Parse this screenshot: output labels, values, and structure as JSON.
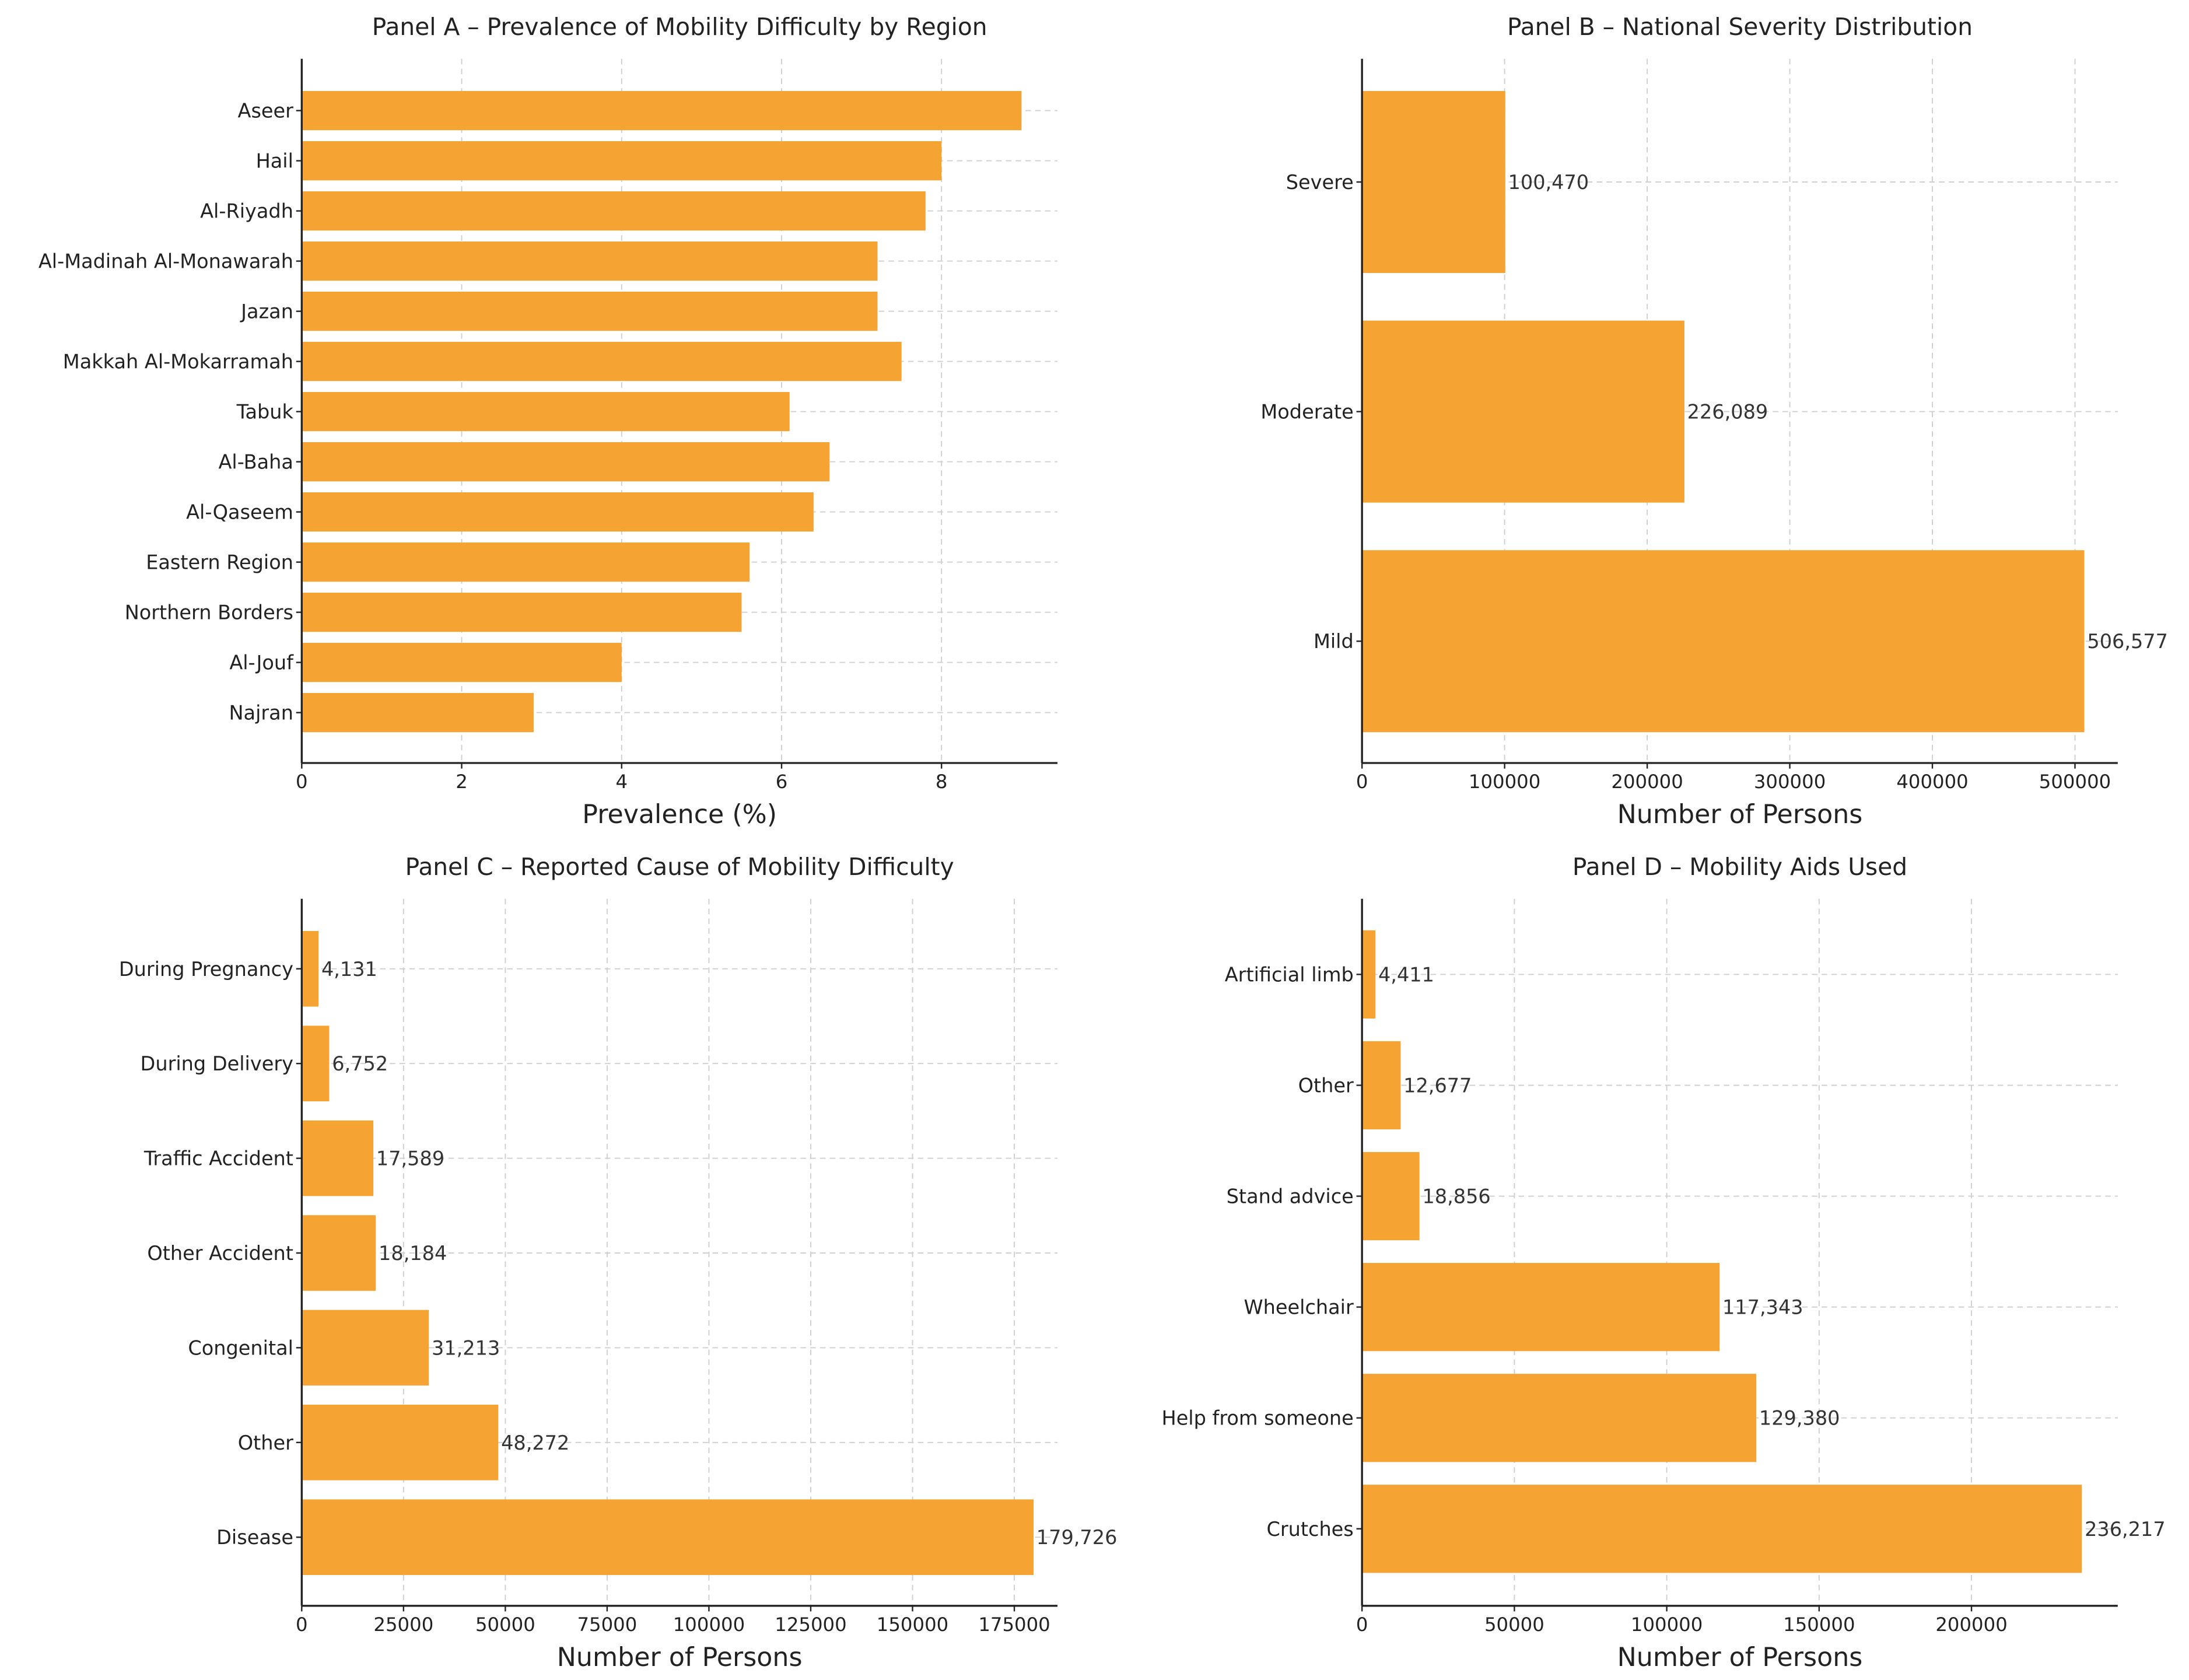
{
  "colors": {
    "bar": "#F5A332",
    "grid": "#cfcfcf",
    "axis": "#222222"
  },
  "chart_data": [
    {
      "type": "bar",
      "orientation": "horizontal",
      "title": "Panel A – Prevalence of Mobility Difficulty by Region",
      "xlabel": "Prevalence (%)",
      "ylabel": "",
      "xlim": [
        0,
        9.45
      ],
      "xticks": [
        0,
        2,
        4,
        6,
        8
      ],
      "xtick_labels": [
        "0",
        "2",
        "4",
        "6",
        "8"
      ],
      "grid": true,
      "categories": [
        "Aseer",
        "Hail",
        "Al-Riyadh",
        "Al-Madinah Al-Monawarah",
        "Jazan",
        "Makkah Al-Mokarramah",
        "Tabuk",
        "Al-Baha",
        "Al-Qaseem",
        "Eastern Region",
        "Northern Borders",
        "Al-Jouf",
        "Najran"
      ],
      "values": [
        9.0,
        8.0,
        7.8,
        7.2,
        7.2,
        7.5,
        6.1,
        6.6,
        6.4,
        5.6,
        5.5,
        4.0,
        2.9
      ],
      "data_labels": []
    },
    {
      "type": "bar",
      "orientation": "horizontal",
      "title": "Panel B – National Severity Distribution",
      "xlabel": "Number of Persons",
      "ylabel": "",
      "xlim": [
        0,
        530000
      ],
      "xticks": [
        0,
        100000,
        200000,
        300000,
        400000,
        500000
      ],
      "xtick_labels": [
        "0",
        "100000",
        "200000",
        "300000",
        "400000",
        "500000"
      ],
      "grid": true,
      "categories": [
        "Mild",
        "Moderate",
        "Severe"
      ],
      "values": [
        506577,
        226089,
        100470
      ],
      "data_labels": [
        "506,577",
        "226,089",
        "100,470"
      ]
    },
    {
      "type": "bar",
      "orientation": "horizontal",
      "title": "Panel C – Reported Cause of Mobility Difficulty",
      "xlabel": "Number of Persons",
      "ylabel": "",
      "xlim": [
        0,
        185600
      ],
      "xticks": [
        0,
        25000,
        50000,
        75000,
        100000,
        125000,
        150000,
        175000
      ],
      "xtick_labels": [
        "0",
        "25000",
        "50000",
        "75000",
        "100000",
        "125000",
        "150000",
        "175000"
      ],
      "grid": true,
      "categories": [
        "Disease",
        "Other",
        "Congenital",
        "Other Accident",
        "Traffic Accident",
        "During Delivery",
        "During Pregnancy"
      ],
      "values": [
        179726,
        48272,
        31213,
        18184,
        17589,
        6752,
        4131
      ],
      "data_labels": [
        "179,726",
        "48,272",
        "31,213",
        "18,184",
        "17,589",
        "6,752",
        "4,131"
      ]
    },
    {
      "type": "bar",
      "orientation": "horizontal",
      "title": "Panel D – Mobility Aids Used",
      "xlabel": "Number of Persons",
      "ylabel": "",
      "xlim": [
        0,
        248000
      ],
      "xticks": [
        0,
        50000,
        100000,
        150000,
        200000
      ],
      "xtick_labels": [
        "0",
        "50000",
        "100000",
        "150000",
        "200000"
      ],
      "grid": true,
      "categories": [
        "Crutches",
        "Help from someone",
        "Wheelchair",
        "Stand advice",
        "Other",
        "Artificial limb"
      ],
      "values": [
        236217,
        129380,
        117343,
        18856,
        12677,
        4411
      ],
      "data_labels": [
        "236,217",
        "129,380",
        "117,343",
        "18,856",
        "12,677",
        "4,411"
      ]
    }
  ]
}
